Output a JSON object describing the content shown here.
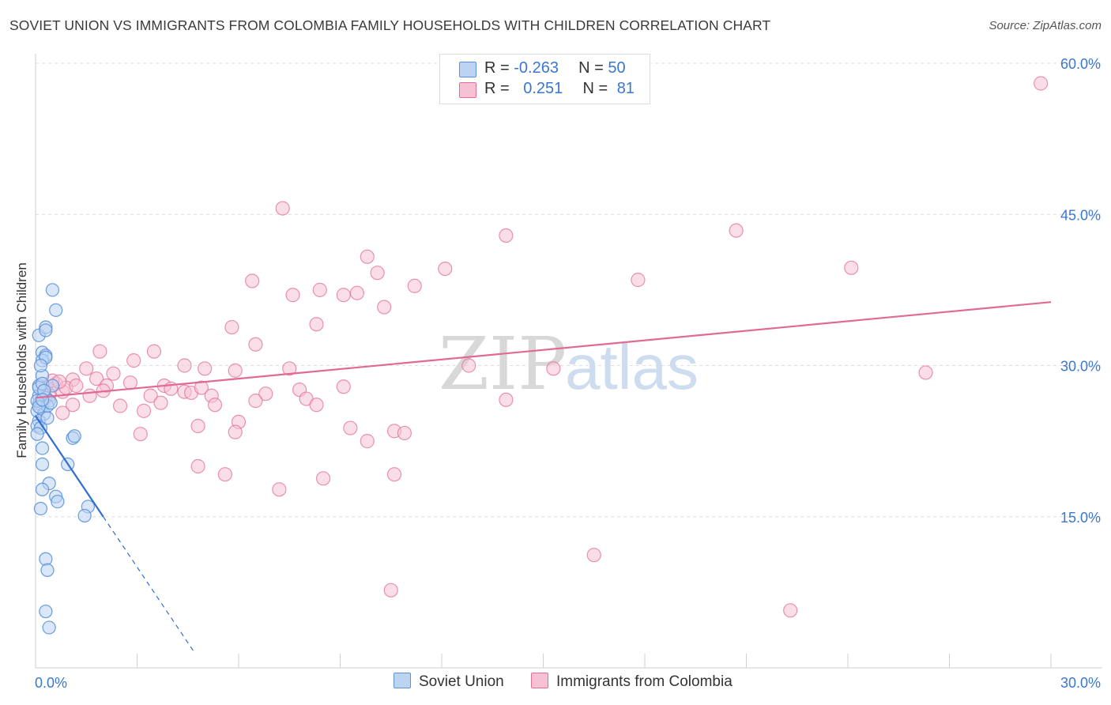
{
  "title": "SOVIET UNION VS IMMIGRANTS FROM COLOMBIA FAMILY HOUSEHOLDS WITH CHILDREN CORRELATION CHART",
  "source": "Source: ZipAtlas.com",
  "watermark": {
    "zip": "ZIP",
    "atlas": "atlas"
  },
  "colors": {
    "blue": "#5b93d9",
    "blue_fill": "#bcd3f2",
    "pink": "#e36f98",
    "pink_fill": "#f6c2d3",
    "blue_line": "#2f6fcf",
    "pink_line": "#e06a92",
    "accent_text": "#3b77d0"
  },
  "legend_top": {
    "rows": [
      {
        "r_label": "R = ",
        "r_value": "-0.263",
        "n_label": "N = ",
        "n_value": "50"
      },
      {
        "r_label": "R = ",
        "r_value": "0.251",
        "n_label": "N = ",
        "n_value": "81"
      }
    ]
  },
  "legend_bottom": {
    "series1": "Soviet Union",
    "series2": "Immigrants from Colombia"
  },
  "chart_data": {
    "type": "scatter",
    "title": "SOVIET UNION VS IMMIGRANTS FROM COLOMBIA FAMILY HOUSEHOLDS WITH CHILDREN CORRELATION CHART",
    "xlabel": "",
    "ylabel": "Family Households with Children",
    "xlim": [
      0,
      30
    ],
    "ylim": [
      0,
      60
    ],
    "x_tick_labels": [
      "0.0%",
      "30.0%"
    ],
    "y_tick_labels": [
      "15.0%",
      "30.0%",
      "45.0%",
      "60.0%"
    ],
    "y_ticks": [
      15,
      30,
      45,
      60
    ],
    "series": [
      {
        "name": "Soviet Union",
        "trend": {
          "x0": 0,
          "y0": 25.0,
          "x1": 2.0,
          "y1": 15.0,
          "dash_to_x": 4.7
        },
        "points": [
          [
            0.1,
            33.0
          ],
          [
            0.3,
            33.8
          ],
          [
            0.6,
            35.5
          ],
          [
            0.5,
            37.5
          ],
          [
            0.3,
            33.5
          ],
          [
            0.2,
            31.3
          ],
          [
            0.3,
            31.0
          ],
          [
            0.2,
            30.5
          ],
          [
            0.1,
            28.0
          ],
          [
            0.2,
            29.0
          ],
          [
            0.1,
            27.0
          ],
          [
            0.3,
            26.8
          ],
          [
            0.4,
            26.5
          ],
          [
            0.1,
            26.2
          ],
          [
            0.2,
            26.0
          ],
          [
            0.15,
            25.8
          ],
          [
            0.05,
            25.5
          ],
          [
            0.25,
            25.2
          ],
          [
            0.1,
            24.5
          ],
          [
            0.35,
            24.8
          ],
          [
            0.05,
            24.0
          ],
          [
            0.15,
            23.8
          ],
          [
            0.05,
            23.2
          ],
          [
            1.1,
            22.8
          ],
          [
            1.15,
            23.0
          ],
          [
            0.2,
            21.8
          ],
          [
            0.2,
            20.2
          ],
          [
            0.95,
            20.2
          ],
          [
            0.4,
            18.3
          ],
          [
            0.2,
            17.7
          ],
          [
            0.6,
            17.0
          ],
          [
            0.65,
            16.5
          ],
          [
            0.15,
            15.8
          ],
          [
            1.55,
            16.0
          ],
          [
            1.45,
            15.1
          ],
          [
            0.3,
            10.8
          ],
          [
            0.35,
            9.7
          ],
          [
            0.3,
            5.6
          ],
          [
            0.4,
            4.0
          ],
          [
            0.1,
            27.8
          ],
          [
            0.2,
            28.2
          ],
          [
            0.5,
            28.0
          ],
          [
            0.3,
            30.8
          ],
          [
            0.15,
            30.0
          ],
          [
            0.05,
            26.5
          ],
          [
            0.25,
            27.5
          ],
          [
            0.35,
            26.0
          ],
          [
            0.1,
            25.9
          ],
          [
            0.45,
            26.3
          ],
          [
            0.2,
            26.6
          ]
        ]
      },
      {
        "name": "Immigrants from Colombia",
        "trend": {
          "x0": 0,
          "y0": 26.8,
          "x1": 30,
          "y1": 36.3
        },
        "points": [
          [
            29.7,
            58.0
          ],
          [
            7.3,
            45.6
          ],
          [
            13.9,
            42.9
          ],
          [
            20.7,
            43.4
          ],
          [
            9.8,
            40.8
          ],
          [
            10.1,
            39.2
          ],
          [
            12.1,
            39.6
          ],
          [
            24.1,
            39.7
          ],
          [
            6.4,
            38.4
          ],
          [
            11.2,
            37.9
          ],
          [
            17.8,
            38.5
          ],
          [
            8.4,
            37.5
          ],
          [
            7.6,
            37.0
          ],
          [
            9.1,
            37.0
          ],
          [
            9.5,
            37.2
          ],
          [
            10.3,
            35.8
          ],
          [
            8.3,
            34.1
          ],
          [
            5.8,
            33.8
          ],
          [
            6.5,
            32.1
          ],
          [
            1.9,
            31.4
          ],
          [
            3.5,
            31.4
          ],
          [
            2.9,
            30.5
          ],
          [
            4.4,
            30.0
          ],
          [
            5.0,
            29.7
          ],
          [
            7.5,
            29.7
          ],
          [
            5.9,
            29.5
          ],
          [
            12.8,
            30.0
          ],
          [
            15.3,
            29.7
          ],
          [
            26.3,
            29.3
          ],
          [
            1.5,
            29.7
          ],
          [
            2.3,
            29.2
          ],
          [
            1.1,
            28.6
          ],
          [
            1.8,
            28.7
          ],
          [
            0.6,
            28.2
          ],
          [
            0.3,
            27.9
          ],
          [
            0.8,
            27.4
          ],
          [
            0.9,
            27.8
          ],
          [
            2.1,
            28.0
          ],
          [
            2.8,
            28.3
          ],
          [
            3.8,
            28.0
          ],
          [
            4.4,
            27.4
          ],
          [
            4.6,
            27.3
          ],
          [
            4.9,
            27.8
          ],
          [
            6.8,
            27.2
          ],
          [
            7.8,
            27.6
          ],
          [
            9.1,
            27.9
          ],
          [
            5.2,
            27.0
          ],
          [
            3.4,
            27.0
          ],
          [
            2.0,
            27.5
          ],
          [
            4.0,
            27.7
          ],
          [
            1.6,
            27.0
          ],
          [
            3.7,
            26.3
          ],
          [
            5.3,
            26.1
          ],
          [
            6.5,
            26.5
          ],
          [
            8.0,
            26.7
          ],
          [
            8.3,
            26.1
          ],
          [
            13.9,
            26.6
          ],
          [
            2.5,
            26.0
          ],
          [
            3.2,
            25.5
          ],
          [
            1.1,
            26.1
          ],
          [
            0.8,
            25.3
          ],
          [
            4.8,
            24.0
          ],
          [
            6.0,
            24.4
          ],
          [
            5.9,
            23.4
          ],
          [
            9.3,
            23.8
          ],
          [
            10.6,
            23.5
          ],
          [
            10.9,
            23.3
          ],
          [
            3.1,
            23.2
          ],
          [
            9.8,
            22.5
          ],
          [
            4.8,
            20.0
          ],
          [
            5.6,
            19.2
          ],
          [
            8.5,
            18.8
          ],
          [
            10.6,
            19.2
          ],
          [
            7.2,
            17.7
          ],
          [
            16.5,
            11.2
          ],
          [
            10.5,
            7.7
          ],
          [
            22.3,
            5.7
          ],
          [
            0.5,
            28.5
          ],
          [
            1.2,
            28.0
          ],
          [
            0.4,
            27.0
          ],
          [
            0.7,
            28.4
          ]
        ]
      }
    ]
  }
}
